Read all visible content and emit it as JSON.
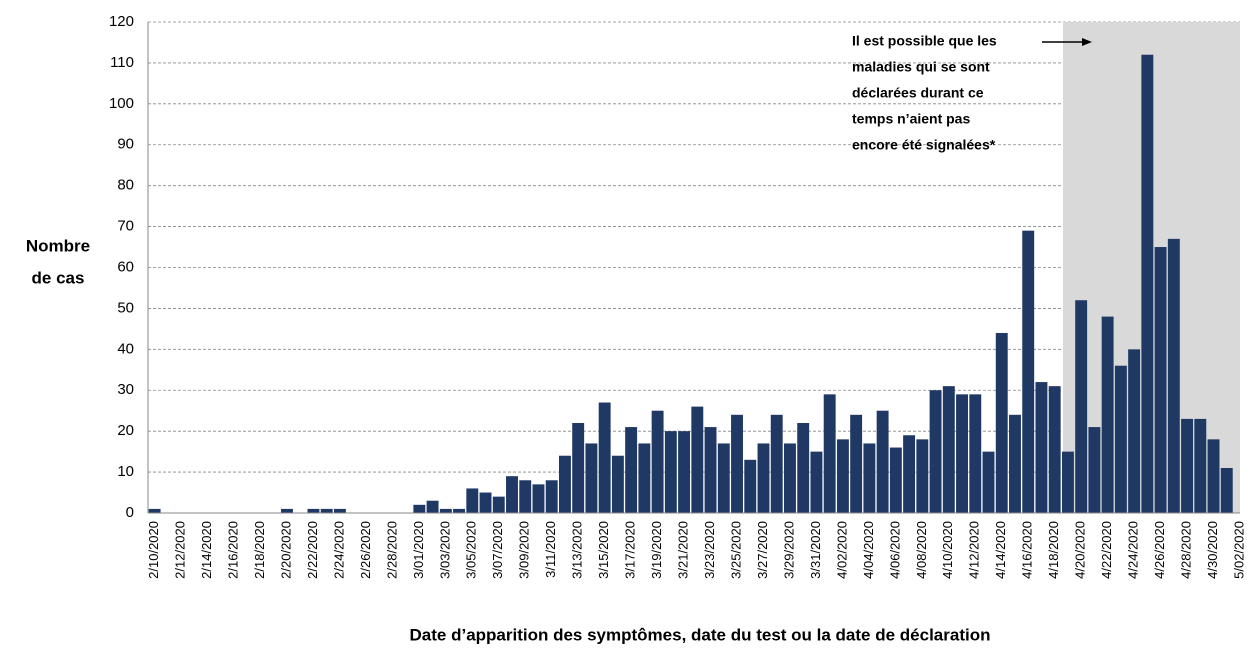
{
  "chart_data": {
    "type": "bar",
    "y_label": [
      "Nombre",
      "de cas"
    ],
    "x_label": "Date d’apparition des symptômes, date du test ou la date de déclaration",
    "annotation": [
      "Il est possible que les",
      "maladies qui se sont",
      "déclarées durant ce",
      "temps n’aient pas",
      "encore  été signalées*"
    ],
    "color": "#203864",
    "grid": true,
    "ylim": [
      0,
      120
    ],
    "yticks": [
      0,
      10,
      20,
      30,
      40,
      50,
      60,
      70,
      80,
      90,
      100,
      110,
      120
    ],
    "categories": [
      "2/10/2020",
      null,
      "2/12/2020",
      null,
      "2/14/2020",
      null,
      "2/16/2020",
      null,
      "2/18/2020",
      null,
      "2/20/2020",
      null,
      "2/22/2020",
      null,
      "2/24/2020",
      null,
      "2/26/2020",
      null,
      "2/28/2020",
      null,
      "3/01/2020",
      null,
      "3/03/2020",
      null,
      "3/05/2020",
      null,
      "3/07/2020",
      null,
      "3/09/2020",
      null,
      "3/11/2020",
      null,
      "3/13/2020",
      null,
      "3/15/2020",
      null,
      "3/17/2020",
      null,
      "3/19/2020",
      null,
      "3/21/2020",
      null,
      "3/23/2020",
      null,
      "3/25/2020",
      null,
      "3/27/2020",
      null,
      "3/29/2020",
      null,
      "3/31/2020",
      null,
      "4/02/2020",
      null,
      "4/04/2020",
      null,
      "4/06/2020",
      null,
      "4/08/2020",
      null,
      "4/10/2020",
      null,
      "4/12/2020",
      null,
      "4/14/2020",
      null,
      "4/16/2020",
      null,
      "4/18/2020",
      null,
      "4/20/2020",
      null,
      "4/22/2020",
      null,
      "4/24/2020",
      null,
      "4/26/2020",
      null,
      "4/28/2020",
      null,
      "4/30/2020",
      null,
      "5/02/2020"
    ],
    "values": [
      1,
      0,
      0,
      0,
      0,
      0,
      0,
      0,
      0,
      0,
      1,
      0,
      1,
      1,
      1,
      0,
      0,
      0,
      0,
      0,
      2,
      3,
      1,
      1,
      6,
      5,
      4,
      9,
      8,
      7,
      8,
      14,
      22,
      17,
      27,
      14,
      21,
      17,
      25,
      20,
      20,
      26,
      21,
      17,
      24,
      13,
      17,
      24,
      17,
      22,
      15,
      29,
      18,
      24,
      17,
      25,
      16,
      19,
      18,
      30,
      31,
      29,
      29,
      15,
      44,
      24,
      69,
      32,
      31,
      15,
      52,
      21,
      48,
      36,
      40,
      112,
      65,
      67,
      23,
      23,
      18,
      11,
      0
    ]
  }
}
